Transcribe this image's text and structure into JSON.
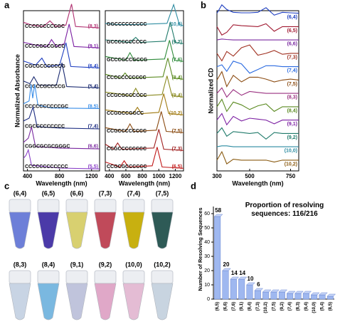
{
  "panel_labels": [
    "a",
    "b",
    "c",
    "d"
  ],
  "chart_data": [
    {
      "type": "ridgeline",
      "xlabel": "Wavelength (nm)",
      "ylabel": "Normalized Absorbance",
      "xlim": [
        350,
        1300
      ],
      "xticks": [
        400,
        800,
        1200
      ],
      "ylim": [
        0,
        1
      ],
      "series": [
        {
          "name": "(8,3)",
          "sequence": "CCCCCCCCCGC",
          "color": "#b03070",
          "x": [
            350,
            450,
            600,
            680,
            750,
            880,
            950,
            1000,
            1300
          ],
          "values": [
            0.25,
            0.15,
            0.1,
            0.3,
            0.1,
            0.15,
            0.9,
            0.1,
            0.05
          ]
        },
        {
          "name": "(9,1)",
          "sequence": "CCCCGCCGCCG",
          "color": "#7b1fa2",
          "x": [
            350,
            500,
            650,
            700,
            760,
            860,
            920,
            980,
            1300
          ],
          "values": [
            0.25,
            0.15,
            0.1,
            0.35,
            0.1,
            0.2,
            0.9,
            0.1,
            0.05
          ]
        },
        {
          "name": "(6,4)",
          "sequence": "CGCGCCCCCCG",
          "color": "#1f3fc0",
          "x": [
            350,
            500,
            580,
            640,
            800,
            880,
            940,
            1300
          ],
          "values": [
            0.3,
            0.15,
            0.4,
            0.1,
            0.15,
            0.95,
            0.1,
            0.05
          ]
        },
        {
          "name": "(5,4)",
          "sequence": "CCGCCGCCCCG",
          "color": "#1a2a70",
          "x": [
            350,
            430,
            480,
            540,
            760,
            830,
            890,
            1300
          ],
          "values": [
            0.3,
            0.2,
            0.45,
            0.15,
            0.15,
            0.95,
            0.1,
            0.05
          ]
        },
        {
          "name": "(8,5)",
          "sequence": "CCCCCCCCCCGC",
          "color": "#3a8ee8",
          "x": [
            350,
            420,
            445,
            465,
            490,
            530,
            700,
            1300
          ],
          "values": [
            0.2,
            0.3,
            0.9,
            0.4,
            0.9,
            0.15,
            0.05,
            0.03
          ]
        },
        {
          "name": "(7,4)",
          "sequence": "CGCCCCCCCCC",
          "color": "#1a2a80",
          "x": [
            350,
            420,
            470,
            520,
            800,
            1300
          ],
          "values": [
            0.3,
            0.4,
            0.8,
            0.1,
            0.05,
            0.02
          ]
        },
        {
          "name": "(6,6)",
          "sequence": "CGGCGCGCGGGC",
          "color": "#7a2aa0",
          "x": [
            350,
            410,
            450,
            500,
            800,
            1300
          ],
          "values": [
            0.25,
            0.4,
            0.8,
            0.1,
            0.05,
            0.02
          ]
        },
        {
          "name": "(5,5)",
          "sequence": "CCCCCCCCCCCC",
          "color": "#8a40c8",
          "x": [
            350,
            380,
            410,
            450,
            800,
            1300
          ],
          "values": [
            0.4,
            0.5,
            0.7,
            0.15,
            0.05,
            0.02
          ]
        }
      ]
    },
    {
      "type": "ridgeline",
      "xlabel": "Wavelength (nm)",
      "xlim": [
        350,
        1300
      ],
      "xticks": [
        400,
        600,
        800,
        1000,
        1200
      ],
      "ylim": [
        0,
        1
      ],
      "series": [
        {
          "name": "(10,0)",
          "sequence": "GGCCCCCCCCC",
          "color": "#2a8aa0",
          "x": [
            350,
            500,
            700,
            1100,
            1180,
            1250,
            1300
          ],
          "values": [
            0.15,
            0.1,
            0.1,
            0.15,
            0.9,
            0.1,
            0.05
          ]
        },
        {
          "name": "(9,2)",
          "sequence": "GCCCCCCCCCC",
          "color": "#1f7a6a",
          "x": [
            350,
            650,
            720,
            780,
            1080,
            1140,
            1200,
            1300
          ],
          "values": [
            0.2,
            0.1,
            0.3,
            0.1,
            0.15,
            0.9,
            0.1,
            0.05
          ]
        },
        {
          "name": "(7,6)",
          "sequence": "GCCCGCCGCCG",
          "color": "#2e8b3a",
          "x": [
            350,
            600,
            650,
            700,
            1070,
            1130,
            1190,
            1300
          ],
          "values": [
            0.25,
            0.1,
            0.4,
            0.1,
            0.15,
            0.9,
            0.1,
            0.05
          ]
        },
        {
          "name": "(8,4)",
          "sequence": "CCCCCCCCCCC",
          "color": "#5a8a20",
          "x": [
            350,
            540,
            590,
            640,
            1050,
            1110,
            1170,
            1300
          ],
          "values": [
            0.25,
            0.1,
            0.3,
            0.1,
            0.15,
            0.9,
            0.1,
            0.05
          ]
        },
        {
          "name": "(9,4)",
          "sequence": "CCGCGCCCCCC",
          "color": "#8a8a20",
          "x": [
            350,
            670,
            720,
            770,
            1040,
            1100,
            1160,
            1300
          ],
          "values": [
            0.25,
            0.1,
            0.4,
            0.1,
            0.15,
            0.9,
            0.1,
            0.05
          ]
        },
        {
          "name": "(10,2)",
          "sequence": "CCGGCCGGCC",
          "color": "#a07a10",
          "x": [
            350,
            690,
            740,
            790,
            1000,
            1060,
            1120,
            1300
          ],
          "values": [
            0.25,
            0.1,
            0.35,
            0.1,
            0.15,
            0.9,
            0.1,
            0.05
          ]
        },
        {
          "name": "(7,5)",
          "sequence": "CCGCCCCCCCC",
          "color": "#8a4a10",
          "x": [
            350,
            600,
            650,
            700,
            970,
            1030,
            1090,
            1300
          ],
          "values": [
            0.25,
            0.1,
            0.4,
            0.1,
            0.15,
            0.9,
            0.1,
            0.05
          ]
        },
        {
          "name": "(7,3)",
          "sequence": "CCGCCCCCCCC",
          "color": "#a02020",
          "x": [
            350,
            450,
            500,
            550,
            940,
            1000,
            1060,
            1300
          ],
          "values": [
            0.3,
            0.1,
            0.35,
            0.1,
            0.15,
            0.9,
            0.1,
            0.05
          ]
        },
        {
          "name": "(6,5)",
          "sequence": "CCGCGCCCCCC",
          "color": "#c01818",
          "x": [
            350,
            530,
            580,
            630,
            920,
            980,
            1040,
            1300
          ],
          "values": [
            0.3,
            0.1,
            0.35,
            0.1,
            0.15,
            0.9,
            0.1,
            0.05
          ]
        }
      ]
    },
    {
      "type": "ridgeline",
      "xlabel": "Wavelength (nm)",
      "ylabel": "Normalized CD",
      "xlim": [
        300,
        800
      ],
      "xticks": [
        300,
        500,
        750
      ],
      "ylim": [
        -1,
        1
      ],
      "x": [
        300,
        330,
        360,
        400,
        450,
        500,
        550,
        600,
        650,
        700,
        750,
        800
      ],
      "series": [
        {
          "name": "(6,4)",
          "color": "#1f3fc0",
          "values": [
            0,
            0.9,
            0.4,
            0.1,
            0.05,
            0.05,
            0.1,
            0.6,
            -0.2,
            0.1,
            0.05,
            0
          ]
        },
        {
          "name": "(6,5)",
          "color": "#a01830",
          "values": [
            0,
            -0.9,
            -0.6,
            0.2,
            0.1,
            0.05,
            0,
            0.3,
            -0.5,
            0,
            0,
            0
          ]
        },
        {
          "name": "(6,6)",
          "color": "#7a2aa0",
          "values": [
            0,
            0.1,
            0.05,
            0,
            0,
            0,
            0,
            0,
            0,
            0,
            0,
            0
          ]
        },
        {
          "name": "(7,3)",
          "color": "#a03020",
          "values": [
            0,
            -0.8,
            0.2,
            -0.3,
            0.6,
            0.9,
            -0.2,
            0,
            0.3,
            -0.1,
            0,
            0
          ]
        },
        {
          "name": "(7,4)",
          "color": "#2a6ae0",
          "values": [
            0,
            0.2,
            -0.5,
            0.6,
            0.3,
            -0.7,
            -0.3,
            0.1,
            0.1,
            0,
            0,
            0
          ]
        },
        {
          "name": "(7,5)",
          "color": "#8a4a10",
          "values": [
            0,
            0.9,
            -0.7,
            0.5,
            -0.2,
            0.3,
            0.3,
            0.1,
            -0.2,
            0,
            0.1,
            0
          ]
        },
        {
          "name": "(8,3)",
          "color": "#9a3080",
          "values": [
            0,
            0.6,
            -0.4,
            0.4,
            -0.2,
            0.2,
            0.1,
            0,
            0,
            0,
            0,
            0
          ]
        },
        {
          "name": "(8,4)",
          "color": "#5a8a20",
          "values": [
            0,
            0.8,
            -0.5,
            0.5,
            0.2,
            -0.3,
            0.1,
            0.3,
            -0.5,
            0,
            0,
            0
          ]
        },
        {
          "name": "(9,1)",
          "color": "#7b1fa2",
          "values": [
            0,
            0.7,
            -0.5,
            0.4,
            -0.1,
            0.2,
            0.1,
            0,
            -0.4,
            0,
            0,
            0
          ]
        },
        {
          "name": "(9,2)",
          "color": "#1f7a6a",
          "values": [
            0,
            0.6,
            -0.3,
            0.2,
            0.1,
            0,
            0.1,
            -0.6,
            0.1,
            0,
            0,
            0
          ]
        },
        {
          "name": "(10,0)",
          "color": "#2a8aa0",
          "values": [
            0,
            0.1,
            0.1,
            0,
            0,
            0,
            0,
            0,
            0,
            0,
            0,
            0
          ]
        },
        {
          "name": "(10,2)",
          "color": "#8a5a10",
          "values": [
            0,
            0.9,
            -0.4,
            0.1,
            0,
            0,
            0,
            0,
            -0.2,
            0,
            0,
            0
          ]
        }
      ]
    },
    {
      "type": "bar",
      "ylabel": "Number of Resolving Sequences",
      "annotation": "Proportion of resolving sequences: 116/216",
      "categories": [
        "(6,5)",
        "(6,6)",
        "(7,6)",
        "(9,1)",
        "(8,4)",
        "(7,3)",
        "(10,2)",
        "(7,5)",
        "(9,2)",
        "(7,4)",
        "(8,3)",
        "(9,4)",
        "(10,0)",
        "(5,4)",
        "(8,5)"
      ],
      "values": [
        58,
        20,
        14,
        14,
        10,
        6,
        5,
        5,
        5,
        4,
        4,
        4,
        3,
        3,
        2
      ],
      "value_labels": [
        "58",
        "20",
        "14",
        "14",
        "10",
        "6",
        null,
        null,
        null,
        null,
        null,
        null,
        null,
        null,
        null
      ],
      "color": "#9fb8f0",
      "ylim": [
        0,
        65
      ],
      "yticks": [
        0,
        10,
        20,
        30,
        40,
        50,
        60
      ]
    }
  ],
  "vials": [
    {
      "label": "(6,4)",
      "color": "#6d7fd8"
    },
    {
      "label": "(6,5)",
      "color": "#4b3aa8"
    },
    {
      "label": "(6,6)",
      "color": "#d8d070"
    },
    {
      "label": "(7,3)",
      "color": "#c04a5a"
    },
    {
      "label": "(7,4)",
      "color": "#c8b010"
    },
    {
      "label": "(7,5)",
      "color": "#2e5a56"
    },
    {
      "label": "(8,3)",
      "color": "#c8d4e4"
    },
    {
      "label": "(8,4)",
      "color": "#7ab8e0"
    },
    {
      "label": "(9,1)",
      "color": "#c0c4dc"
    },
    {
      "label": "(9,2)",
      "color": "#e0a8c8"
    },
    {
      "label": "(10,0)",
      "color": "#e4bcd4"
    },
    {
      "label": "(10,2)",
      "color": "#c8d4e0"
    }
  ]
}
